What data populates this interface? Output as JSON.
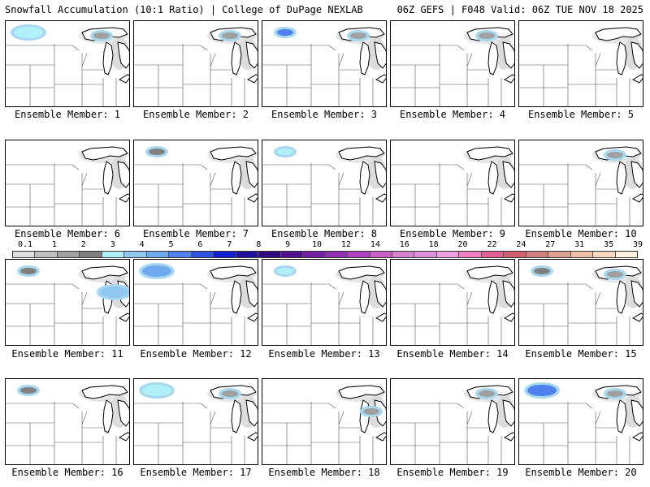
{
  "header": {
    "left": "Snowfall Accumulation (10:1 Ratio) | College of DuPage NEXLAB",
    "right": "06Z GEFS | F048 Valid: 06Z TUE NOV 18 2025"
  },
  "panels": [
    {
      "label": "Ensemble Member: 1",
      "blobs": [
        {
          "level": 4,
          "where": "northern-plains",
          "size": "medium"
        },
        {
          "level": 2,
          "where": "upper-michigan",
          "size": "small"
        }
      ]
    },
    {
      "label": "Ensemble Member: 2",
      "blobs": [
        {
          "level": 2,
          "where": "upper-michigan",
          "size": "small"
        }
      ]
    },
    {
      "label": "Ensemble Member: 3",
      "blobs": [
        {
          "level": 7,
          "where": "northern-plains",
          "size": "small"
        },
        {
          "level": 2,
          "where": "upper-michigan",
          "size": "small"
        }
      ]
    },
    {
      "label": "Ensemble Member: 4",
      "blobs": [
        {
          "level": 2,
          "where": "upper-michigan",
          "size": "small"
        }
      ]
    },
    {
      "label": "Ensemble Member: 5",
      "blobs": []
    },
    {
      "label": "Ensemble Member: 6",
      "blobs": []
    },
    {
      "label": "Ensemble Member: 7",
      "blobs": [
        {
          "level": 3,
          "where": "northern-plains",
          "size": "small"
        }
      ]
    },
    {
      "label": "Ensemble Member: 8",
      "blobs": [
        {
          "level": 4,
          "where": "northern-plains",
          "size": "small"
        }
      ]
    },
    {
      "label": "Ensemble Member: 9",
      "blobs": []
    },
    {
      "label": "Ensemble Member: 10",
      "blobs": [
        {
          "level": 2,
          "where": "upper-michigan",
          "size": "small"
        }
      ]
    },
    {
      "label": "Ensemble Member: 11",
      "blobs": [
        {
          "level": 3,
          "where": "northern-plains",
          "size": "small"
        },
        {
          "level": 5,
          "where": "lower-michigan",
          "size": "medium"
        }
      ]
    },
    {
      "label": "Ensemble Member: 12",
      "blobs": [
        {
          "level": 6,
          "where": "northern-plains",
          "size": "medium"
        }
      ]
    },
    {
      "label": "Ensemble Member: 13",
      "blobs": [
        {
          "level": 4,
          "where": "northern-plains",
          "size": "small"
        }
      ]
    },
    {
      "label": "Ensemble Member: 14",
      "blobs": []
    },
    {
      "label": "Ensemble Member: 15",
      "blobs": [
        {
          "level": 3,
          "where": "northern-plains",
          "size": "small"
        },
        {
          "level": 2,
          "where": "upper-michigan",
          "size": "small"
        }
      ]
    },
    {
      "label": "Ensemble Member: 16",
      "blobs": [
        {
          "level": 3,
          "where": "northern-plains",
          "size": "small"
        }
      ]
    },
    {
      "label": "Ensemble Member: 17",
      "blobs": [
        {
          "level": 4,
          "where": "northern-plains",
          "size": "medium"
        },
        {
          "level": 2,
          "where": "upper-michigan",
          "size": "small"
        }
      ]
    },
    {
      "label": "Ensemble Member: 18",
      "blobs": [
        {
          "level": 2,
          "where": "lower-michigan",
          "size": "small"
        }
      ]
    },
    {
      "label": "Ensemble Member: 19",
      "blobs": [
        {
          "level": 2,
          "where": "upper-michigan",
          "size": "small"
        }
      ]
    },
    {
      "label": "Ensemble Member: 20",
      "blobs": [
        {
          "level": 7,
          "where": "northern-plains",
          "size": "medium"
        },
        {
          "level": 2,
          "where": "upper-michigan",
          "size": "small"
        }
      ]
    }
  ],
  "legend": {
    "ticks": [
      "0.1",
      "1",
      "2",
      "3",
      "4",
      "5",
      "6",
      "7",
      "8",
      "9",
      "10",
      "12",
      "14",
      "16",
      "18",
      "20",
      "22",
      "24",
      "27",
      "31",
      "35",
      "39"
    ],
    "colors": [
      "#e0e0e0",
      "#c0c0c0",
      "#a0a0a0",
      "#808080",
      "#b0f0f8",
      "#90c8f0",
      "#70a8f0",
      "#5080f0",
      "#3050e0",
      "#1020d0",
      "#2010a0",
      "#300880",
      "#501090",
      "#7020a0",
      "#9030b0",
      "#b040c0",
      "#c860c8",
      "#d880d0",
      "#e090d8",
      "#f0a0e0",
      "#f080c0",
      "#e06090",
      "#d06070",
      "#d08080",
      "#e0a090",
      "#f0c0a8",
      "#f8d8c0",
      "#fff0e0"
    ]
  }
}
